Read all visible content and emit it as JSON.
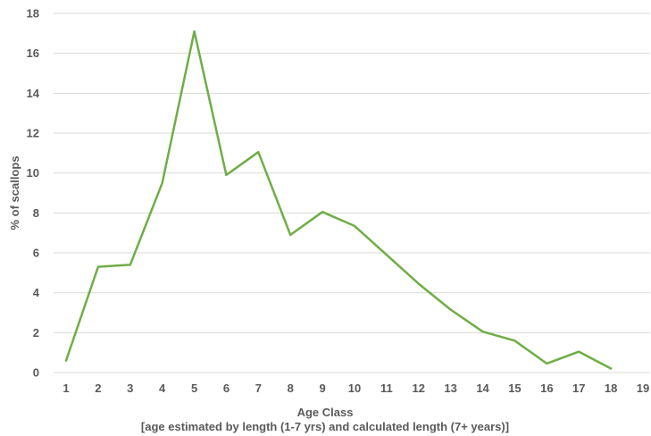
{
  "chart_data": {
    "type": "line",
    "title": "",
    "xlabel": "Age Class",
    "xlabel_sub": "[age estimated by length (1-7 yrs) and calculated length (7+ years)]",
    "ylabel": "% of scallops",
    "x_ticks": [
      "1",
      "2",
      "3",
      "4",
      "5",
      "6",
      "7",
      "8",
      "9",
      "10",
      "11",
      "12",
      "13",
      "14",
      "15",
      "16",
      "17",
      "18",
      "19"
    ],
    "y_ticks": [
      "0",
      "2",
      "4",
      "6",
      "8",
      "10",
      "12",
      "14",
      "16",
      "18"
    ],
    "xlim": [
      1,
      19
    ],
    "ylim": [
      0,
      18
    ],
    "grid": "horizontal",
    "legend": "none",
    "series": [
      {
        "color": "#70ad47",
        "x": [
          1,
          2,
          3,
          4,
          5,
          6,
          7,
          8,
          9,
          10,
          11,
          12,
          13,
          14,
          15,
          16,
          17,
          18
        ],
        "values": [
          0.6,
          5.3,
          5.4,
          9.5,
          17.1,
          9.9,
          11.05,
          6.9,
          8.05,
          7.35,
          5.9,
          4.45,
          3.15,
          2.05,
          1.6,
          0.45,
          1.05,
          0.2
        ]
      }
    ]
  }
}
